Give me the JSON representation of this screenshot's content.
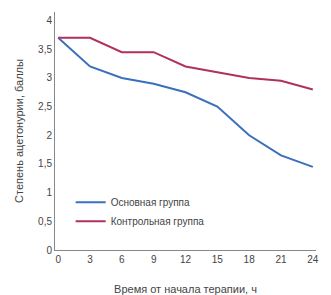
{
  "chart_data": {
    "type": "line",
    "x": [
      0,
      3,
      6,
      9,
      12,
      15,
      18,
      21,
      24
    ],
    "series": [
      {
        "name": "Основная группа",
        "color": "#3a6fbd",
        "values": [
          3.7,
          3.2,
          3.0,
          2.9,
          2.75,
          2.5,
          2.0,
          1.65,
          1.45
        ]
      },
      {
        "name": "Контрольная группа",
        "color": "#b03060",
        "values": [
          3.7,
          3.7,
          3.45,
          3.45,
          3.2,
          3.1,
          3.0,
          2.95,
          2.8
        ]
      }
    ],
    "xlabel": "Время от начала терапии, ч",
    "ylabel": "Степень ацетонурии, баллы",
    "xlim": [
      -0.3,
      24.3
    ],
    "ylim": [
      0,
      4.15
    ],
    "xticks": [
      0,
      3,
      6,
      9,
      12,
      15,
      18,
      21,
      24
    ],
    "yticks": [
      0,
      {
        "value": 0.5,
        "label": "0,5"
      },
      1,
      {
        "value": 1.5,
        "label": "1,5"
      },
      2,
      {
        "value": 2.5,
        "label": "2,5"
      },
      3,
      {
        "value": 3.5,
        "label": "3,5"
      },
      4
    ],
    "grid": false,
    "legend": "lower left"
  }
}
